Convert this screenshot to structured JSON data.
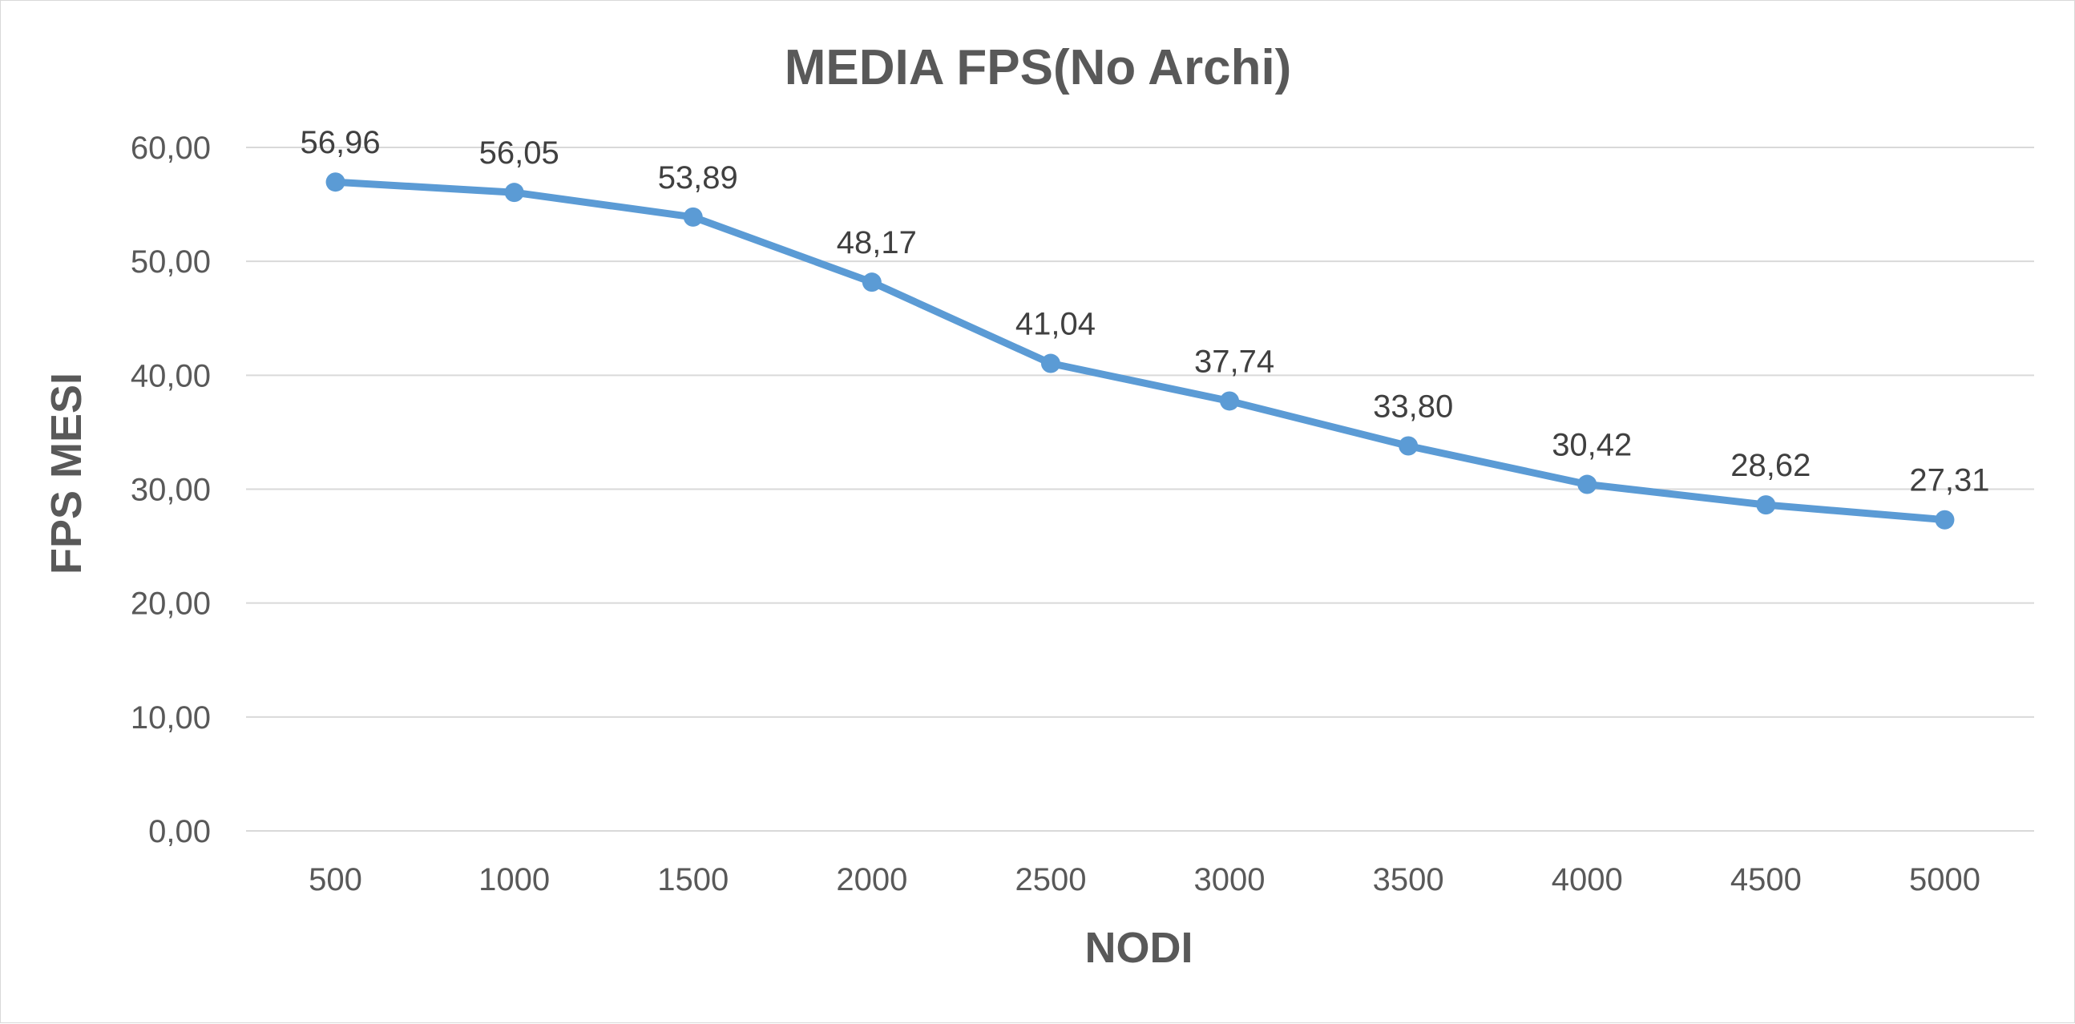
{
  "chart_data": {
    "type": "line",
    "title": "MEDIA FPS(No Archi)",
    "xlabel": "NODI",
    "ylabel": "FPS MESI",
    "categories": [
      "500",
      "1000",
      "1500",
      "2000",
      "2500",
      "3000",
      "3500",
      "4000",
      "4500",
      "5000"
    ],
    "series": [
      {
        "values": [
          56.96,
          56.05,
          53.89,
          48.17,
          41.04,
          37.74,
          33.8,
          30.42,
          28.62,
          27.31
        ],
        "data_labels": [
          "56,96",
          "56,05",
          "53,89",
          "48,17",
          "41,04",
          "37,74",
          "33,80",
          "30,42",
          "28,62",
          "27,31"
        ]
      }
    ],
    "ylim": [
      0,
      60
    ],
    "y_ticks": [
      0,
      10,
      20,
      30,
      40,
      50,
      60
    ],
    "y_tick_labels": [
      "0,00",
      "10,00",
      "20,00",
      "30,00",
      "40,00",
      "50,00",
      "60,00"
    ],
    "grid": "horizontal",
    "legend": "none",
    "line_color": "#5B9BD5",
    "gridline_color": "#d9d9d9",
    "text_color": "#595959"
  }
}
